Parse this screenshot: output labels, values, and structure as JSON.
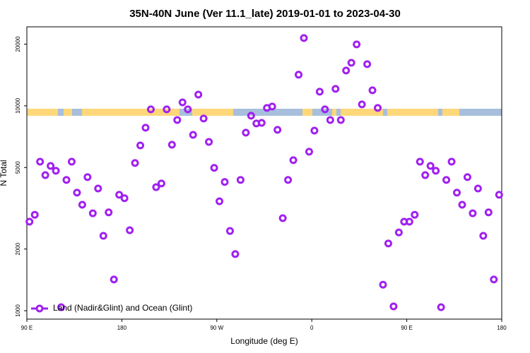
{
  "chart_data": {
    "type": "scatter",
    "title": "35N-40N June (Ver 11.1_late)   2019-01-01 to 2023-04-30",
    "x_label": "Longitude (deg E)",
    "y_label": "N Total",
    "log_y": true,
    "xlim": [
      -270,
      180
    ],
    "xticks": [
      {
        "value": -270,
        "label": "90 E"
      },
      {
        "value": -180,
        "label": "180"
      },
      {
        "value": -90,
        "label": "90 W"
      },
      0,
      {
        "value": 90,
        "label": "90 E"
      },
      180
    ],
    "ylim": [
      910,
      24300
    ],
    "yticks": [
      1000,
      2000,
      5000,
      10000,
      20000
    ],
    "legend": "bottom-left",
    "series": [
      {
        "name": "Land (Nadir&Glint) and Ocean (Glint)",
        "color": "#a020f0",
        "x": [
          -267.5,
          -262.5,
          -257.5,
          -252.5,
          -247.5,
          -242.5,
          -237.5,
          -232.5,
          -227.5,
          -222.5,
          -217.5,
          -212.5,
          -207.5,
          -202.5,
          -197.5,
          -192.5,
          -187.5,
          -182.5,
          -177.5,
          -172.5,
          -167.5,
          -162.5,
          -157.5,
          -152.5,
          -147.5,
          -142.5,
          -137.5,
          -132.5,
          -127.5,
          -122.5,
          -117.5,
          -112.5,
          -107.5,
          -102.5,
          -97.5,
          -92.5,
          -87.5,
          -82.5,
          -77.5,
          -72.5,
          -67.5,
          -62.5,
          -57.5,
          -52.5,
          -47.5,
          -42.5,
          -37.5,
          -32.5,
          -27.5,
          -22.5,
          -17.5,
          -12.5,
          -7.5,
          -2.5,
          2.5,
          7.5,
          12.5,
          17.5,
          22.5,
          27.5,
          32.5,
          37.5,
          42.5,
          47.5,
          52.5,
          57.5,
          62.5,
          67.5,
          72.5,
          77.5,
          82.5,
          87.5,
          92.5,
          97.5,
          102.5,
          107.5,
          112.5,
          117.5,
          122.5,
          127.5,
          132.5,
          137.5,
          142.5,
          147.5,
          152.5,
          157.5,
          162.5,
          167.5,
          172.5,
          177.5
        ],
        "values": [
          2720,
          2940,
          5340,
          4590,
          5090,
          4820,
          1040,
          4350,
          5340,
          3770,
          3290,
          4490,
          2990,
          3950,
          2320,
          3020,
          1420,
          3680,
          3540,
          2470,
          5260,
          6410,
          7820,
          9610,
          4010,
          4180,
          9610,
          6460,
          8530,
          10400,
          9610,
          7220,
          11350,
          8670,
          6670,
          4980,
          3420,
          4250,
          2450,
          1890,
          4350,
          7400,
          8950,
          8200,
          8260,
          9770,
          9920,
          7640,
          2830,
          4350,
          5430,
          14190,
          21430,
          5970,
          7570,
          11720,
          9610,
          8530,
          12100,
          8530,
          14870,
          16230,
          19950,
          10160,
          15970,
          11910,
          9770,
          1340,
          2130,
          1050,
          2410,
          2720,
          2720,
          2940,
          5340,
          4590,
          5090,
          4820,
          1040,
          4350,
          5340,
          3770,
          3290,
          4490,
          2990,
          3950,
          2320,
          3020,
          1420,
          3680
        ]
      }
    ]
  }
}
